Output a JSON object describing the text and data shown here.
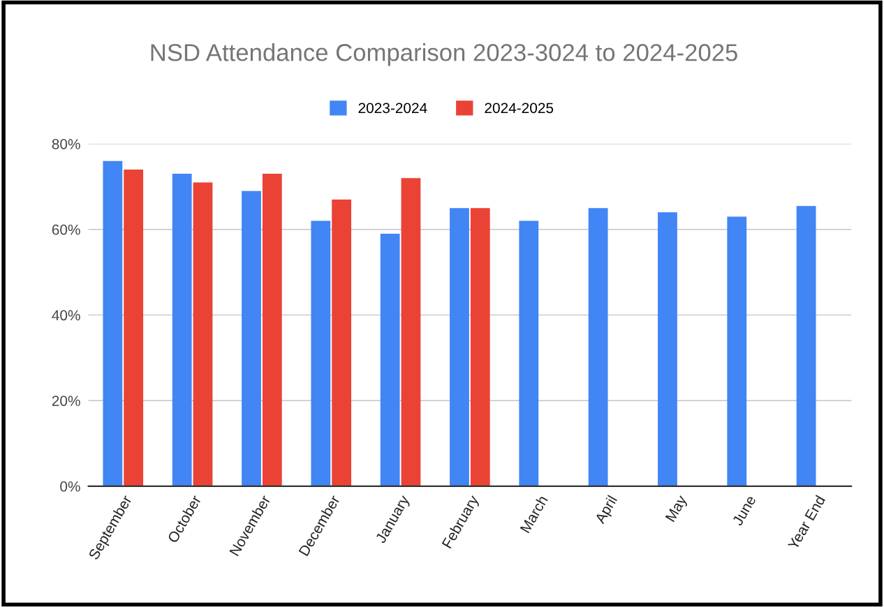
{
  "chart_data": {
    "type": "bar",
    "title": "NSD Attendance Comparison 2023-3024 to 2024-2025",
    "categories": [
      "September",
      "October",
      "November",
      "December",
      "January",
      "February",
      "March",
      "April",
      "May",
      "June",
      "Year End"
    ],
    "series": [
      {
        "name": "2023-2024",
        "color": "#4285f4",
        "values": [
          76,
          73,
          69,
          62,
          59,
          65,
          62,
          65,
          64,
          63,
          65.5
        ]
      },
      {
        "name": "2024-2025",
        "color": "#ea4335",
        "values": [
          74,
          71,
          73,
          67,
          72,
          65,
          null,
          null,
          null,
          null,
          null
        ]
      }
    ],
    "ylim": [
      0,
      80
    ],
    "yticks": [
      {
        "value": 0,
        "label": "0%"
      },
      {
        "value": 20,
        "label": "20%"
      },
      {
        "value": 40,
        "label": "40%"
      },
      {
        "value": 60,
        "label": "60%"
      },
      {
        "value": 80,
        "label": "80%"
      }
    ],
    "grid": "y",
    "legend": "top"
  }
}
